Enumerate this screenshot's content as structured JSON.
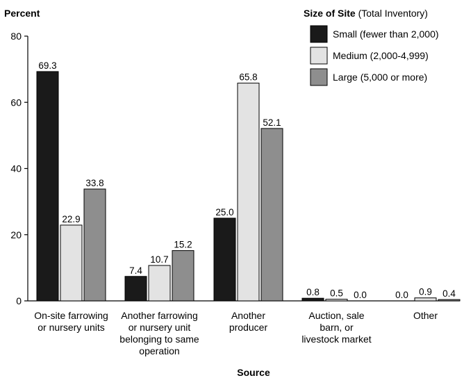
{
  "chart_data": {
    "type": "bar",
    "ylabel": "Percent",
    "xlabel": "Source",
    "ylim": [
      0,
      80
    ],
    "yticks": [
      0,
      20,
      40,
      60,
      80
    ],
    "legend": {
      "title_bold": "Size of Site",
      "title_rest": " (Total Inventory)",
      "placement": "top-right"
    },
    "categories": [
      [
        "On-site farrowing",
        "or nursery units"
      ],
      [
        "Another farrowing",
        "or nursery unit",
        "belonging to same",
        "operation"
      ],
      [
        "Another",
        "producer"
      ],
      [
        "Auction, sale",
        "barn, or",
        "livestock market"
      ],
      [
        "Other"
      ]
    ],
    "series": [
      {
        "name": "Small (fewer than 2,000)",
        "color": "#1a1a1a",
        "values": [
          69.3,
          7.4,
          25.0,
          0.8,
          0.0
        ]
      },
      {
        "name": "Medium (2,000-4,999)",
        "color": "#e3e3e3",
        "values": [
          22.9,
          10.7,
          65.8,
          0.5,
          0.9
        ]
      },
      {
        "name": "Large (5,000 or more)",
        "color": "#8e8e8e",
        "values": [
          33.8,
          15.2,
          52.1,
          0.0,
          0.4
        ]
      }
    ]
  }
}
